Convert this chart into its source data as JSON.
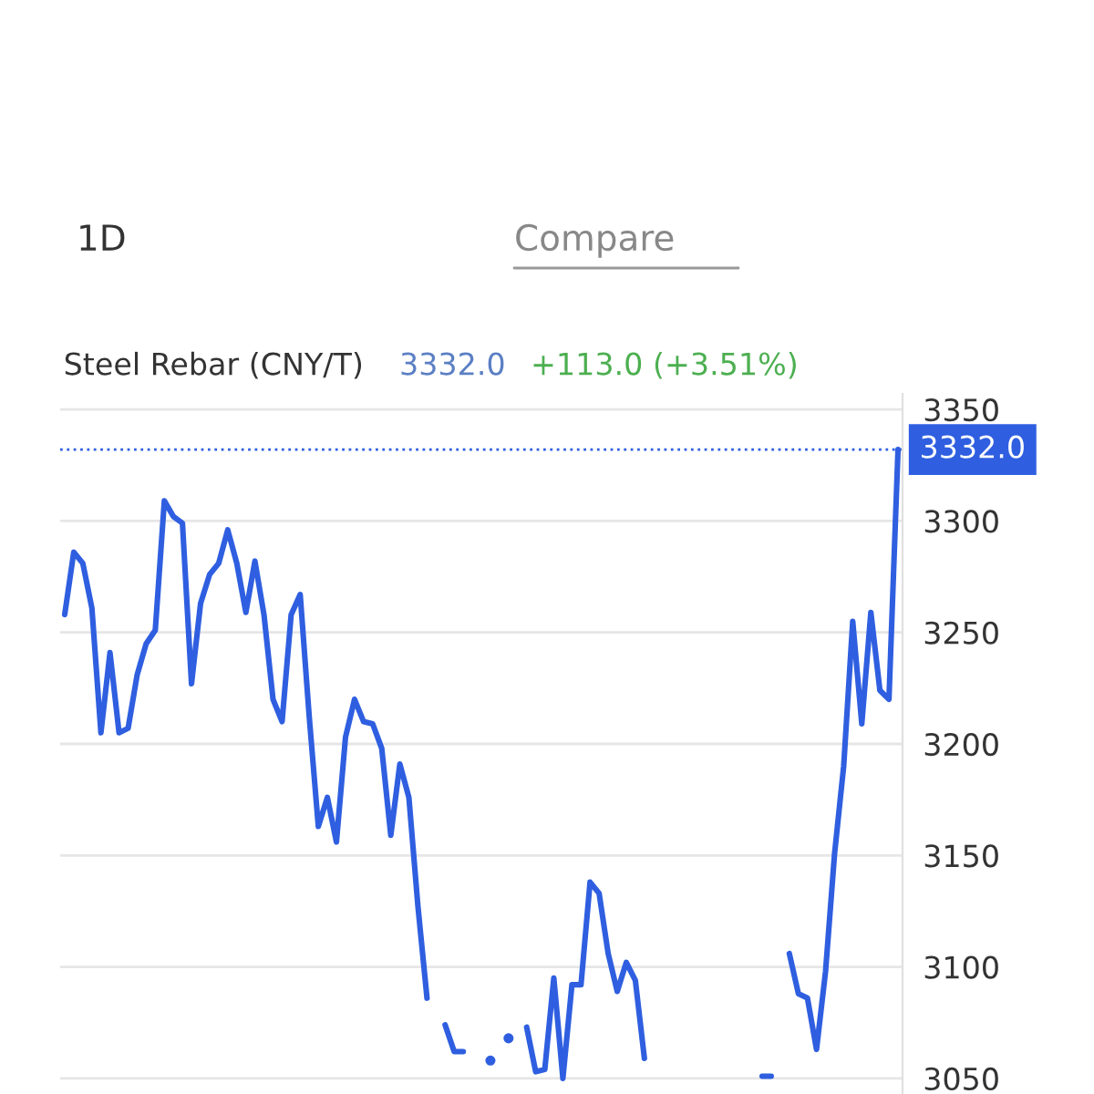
{
  "chart_data": {
    "type": "line",
    "title": "Steel Rebar (CNY/T)",
    "annotations": [
      "1D",
      "Compare",
      "3332.0",
      "+113.0 (+3.51%)"
    ],
    "categories": [
      null,
      null,
      null,
      null,
      null,
      null,
      null,
      null,
      null,
      null,
      null,
      null,
      null,
      null,
      null,
      null,
      null,
      null,
      null,
      null,
      null,
      null,
      null,
      null,
      null,
      null,
      null,
      null,
      null,
      null,
      null,
      null,
      null,
      null,
      null,
      null,
      null,
      null,
      null,
      null,
      null,
      null,
      null,
      null,
      null,
      null,
      null,
      null,
      null,
      null,
      null,
      null,
      null,
      null,
      null,
      null,
      null,
      null,
      null,
      null,
      null,
      null,
      null,
      null,
      null,
      null,
      null,
      null,
      null,
      null,
      null,
      null,
      null,
      null,
      null,
      null,
      null,
      null,
      null,
      null,
      null,
      null,
      null,
      null,
      null,
      null,
      null,
      null,
      null,
      null,
      null,
      null,
      null
    ],
    "series": [
      {
        "color": "#2f5fe0",
        "values": [
          3258,
          3286,
          3281,
          3261,
          3205,
          3241,
          3205,
          3207,
          3231,
          3245,
          3251,
          3309,
          3302,
          3299,
          3227,
          3263,
          3276,
          3281,
          3296,
          3281,
          3259,
          3282,
          3258,
          3220,
          3210,
          3258,
          3267,
          3212,
          3163,
          3176,
          3156,
          3203,
          3220,
          3210,
          3209,
          3198,
          3159,
          3191,
          3176,
          3127,
          3086,
          null,
          3074,
          3062,
          3062,
          null,
          null,
          3058,
          null,
          3068,
          null,
          3073,
          3053,
          3054,
          3095,
          3050,
          3092,
          3092,
          3138,
          3133,
          3106,
          3089,
          3102,
          3094,
          3059,
          null,
          null,
          null,
          null,
          null,
          null,
          null,
          null,
          null,
          null,
          null,
          null,
          3051,
          3051,
          null,
          3106,
          3088,
          3086,
          3063,
          3098,
          3151,
          3190,
          3255,
          3209,
          3259,
          3224,
          3220,
          3332
        ]
      }
    ],
    "ylim": [
      3043,
      3357
    ],
    "yticks": [
      3050,
      3100,
      3150,
      3200,
      3250,
      3300,
      3350
    ],
    "ref_lines": [
      {
        "axis": "y",
        "value": 3332.0,
        "label": "3332.0",
        "color": "#2f5fe0",
        "line_style": "dotted"
      }
    ],
    "grid": "y",
    "legend": false,
    "marker": "none",
    "line_style": "solid",
    "tick_labels": "y"
  }
}
